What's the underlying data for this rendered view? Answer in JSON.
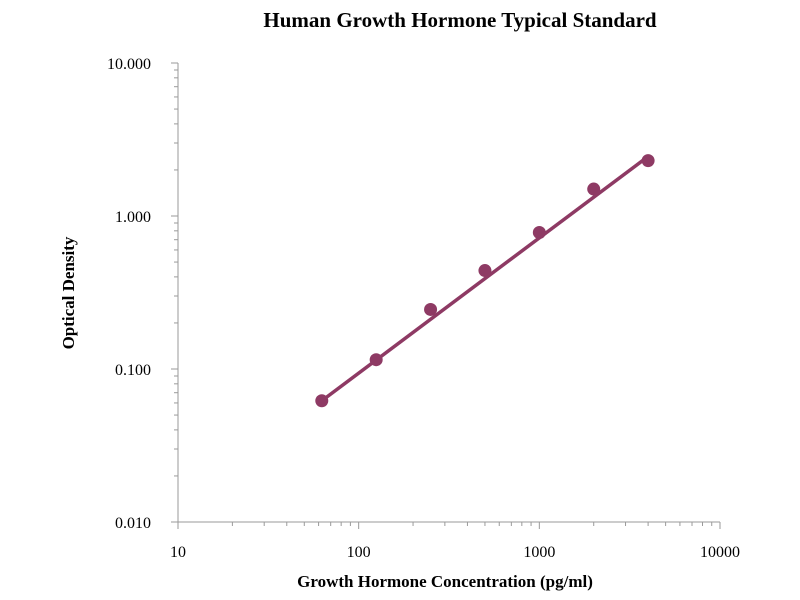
{
  "chart_data": {
    "type": "scatter",
    "title": "Human Growth Hormone Typical Standard",
    "xlabel": "Growth Hormone Concentration (pg/ml)",
    "ylabel": "Optical Density",
    "x_scale": "log",
    "y_scale": "log",
    "xlim": [
      10,
      10000
    ],
    "ylim": [
      0.01,
      10
    ],
    "x_ticks": [
      10,
      100,
      1000,
      10000
    ],
    "x_tick_labels": [
      "10",
      "100",
      "1000",
      "10000"
    ],
    "y_ticks": [
      0.01,
      0.1,
      1,
      10
    ],
    "y_tick_labels": [
      "0.010",
      "0.100",
      "1.000",
      "10.000"
    ],
    "grid": false,
    "legend": "none",
    "series": [
      {
        "x": [
          62.5,
          125,
          250,
          500,
          1000,
          2000,
          4000
        ],
        "y": [
          0.062,
          0.115,
          0.245,
          0.44,
          0.78,
          1.5,
          2.3
        ],
        "color": "#8e3a64",
        "marker": "circle",
        "trendline": {
          "x": [
            62.5,
            4000
          ],
          "y": [
            0.062,
            2.45
          ]
        }
      }
    ]
  }
}
